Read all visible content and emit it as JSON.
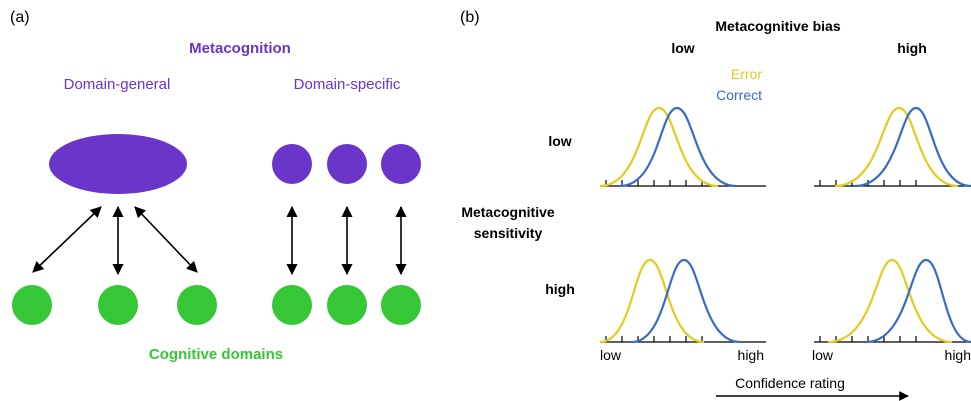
{
  "colors": {
    "purple": "#6a35c9",
    "green": "#35c735",
    "error": "#e2cc1e",
    "correct": "#3a6bc4",
    "ink": "#000000"
  },
  "panel_a": {
    "label": "(a)",
    "title": "Metacognition",
    "general_label": "Domain-general",
    "specific_label": "Domain-specific",
    "bottom_label": "Cognitive domains"
  },
  "panel_b": {
    "label": "(b)",
    "bias_title": "Metacognitive bias",
    "bias_low": "low",
    "bias_high": "high",
    "legend_error": "Error",
    "legend_correct": "Correct",
    "sens_low": "low",
    "sens_title_1": "Metacognitive",
    "sens_title_2": "sensitivity",
    "sens_high": "high",
    "xtick_low": "low",
    "xtick_high": "high",
    "xtick_low_2": "low",
    "xtick_high_2": "high",
    "xaxis_label": "Confidence rating"
  }
}
